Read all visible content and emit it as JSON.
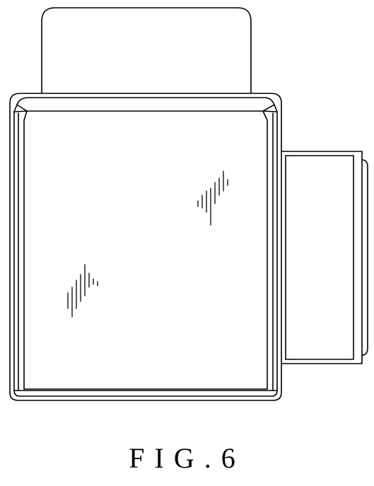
{
  "figure": {
    "label": "FIG.6",
    "line_color": "#000000",
    "background_color": "#ffffff"
  }
}
